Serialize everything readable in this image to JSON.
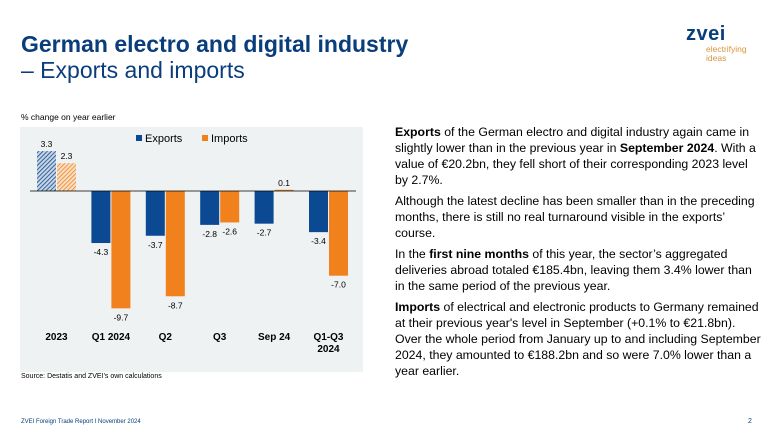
{
  "header": {
    "title_line1": "German electro and digital industry",
    "title_line2": "– Exports and imports"
  },
  "logo": {
    "word": "zvei",
    "tagline_line1": "electrifying",
    "tagline_line2": "ideas"
  },
  "colors": {
    "brand_blue": "#0a3d7c",
    "exports": "#0b4a93",
    "imports": "#f0811d",
    "panel_bg": "#eff2f3",
    "logo_tagline": "#d9953b"
  },
  "chart_data": {
    "type": "bar",
    "title": "",
    "ylabel": "% change on year earlier",
    "xlabel": "",
    "categories": [
      "2023",
      "Q1 2024",
      "Q2",
      "Q3",
      "Sep 24",
      "Q1-Q3\n2024"
    ],
    "category_lines": [
      [
        "2023"
      ],
      [
        "Q1 2024"
      ],
      [
        "Q2"
      ],
      [
        "Q3"
      ],
      [
        "Sep 24"
      ],
      [
        "Q1-Q3",
        "2024"
      ]
    ],
    "series": [
      {
        "name": "Exports",
        "values": [
          3.3,
          -4.3,
          -3.7,
          -2.8,
          -2.7,
          -3.4
        ],
        "labels": [
          "3.3",
          "-4.3",
          "-3.7",
          "-2.8",
          "-2.7",
          "-3.4"
        ]
      },
      {
        "name": "Imports",
        "values": [
          2.3,
          -9.7,
          -8.7,
          -2.6,
          0.1,
          -7.0
        ],
        "labels": [
          "2.3",
          "-9.7",
          "-8.7",
          "-2.6",
          "0.1",
          "-7.0"
        ]
      }
    ],
    "hatched_categories": [
      "2023"
    ],
    "ylim": [
      -11.0,
      5.0
    ],
    "grid": false,
    "legend": {
      "position": "top-center",
      "entries": [
        "Exports",
        "Imports"
      ]
    },
    "source": "Source: Destatis and ZVEI’s own calculations"
  },
  "body_text": {
    "p1": {
      "b1": "Exports",
      "t1": " of the German electro and digital industry again came in slightly lower than in the previous year in ",
      "b2": "September 2024",
      "t2": ". With a value of €20.2bn, they fell short of their corresponding 2023 level by 2.7%."
    },
    "p2": {
      "t1": "Although the latest decline has been smaller than in the preceding months, there is still no real turnaround visible in the exports’ course."
    },
    "p3": {
      "t1": "In the ",
      "b1": "first nine months",
      "t2": " of this year, the sector’s aggregated deliveries abroad totaled €185.4bn, leaving them 3.4% lower than in the same period of the previous year."
    },
    "p4": {
      "b1": "Imports",
      "t1": " of electrical and electronic products to Germany remained at their previous year's level in September (+0.1% to €21.8bn). Over the whole period from January up to and including September 2024, they amounted to €188.2bn and so were 7.0% lower than a year earlier."
    }
  },
  "footer": {
    "report": "ZVEI Foreign Trade Report I November 2024",
    "page": "2"
  }
}
